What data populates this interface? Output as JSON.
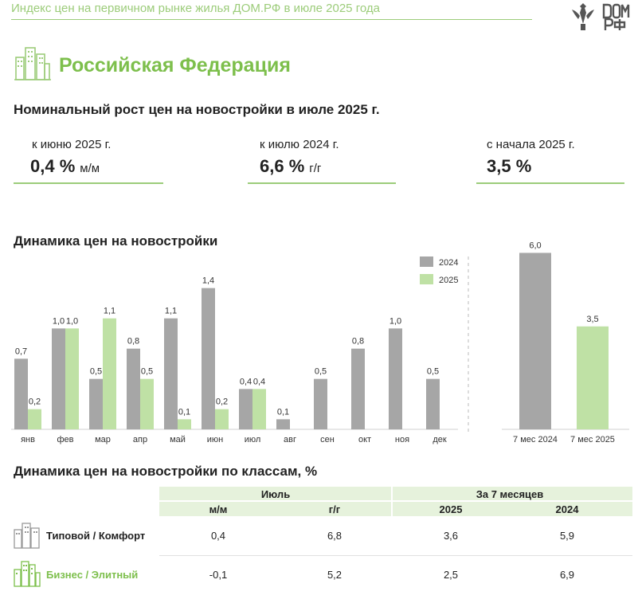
{
  "header": {
    "title": "Индекс цен на первичном рынке жилья ДОМ.РФ в июле 2025 года",
    "logo_text": "ДОМ РФ"
  },
  "region": {
    "title": "Российская Федерация"
  },
  "kpi_section": {
    "title": "Номинальный рост цен на новостройки в июле 2025 г.",
    "items": [
      {
        "label": "к июню 2025 г.",
        "value": "0,4 %",
        "unit": "м/м"
      },
      {
        "label": "к июлю 2024 г.",
        "value": "6,6 %",
        "unit": "г/г"
      },
      {
        "label": "с начала 2025 г.",
        "value": "3,5 %",
        "unit": ""
      }
    ]
  },
  "colors": {
    "accent": "#7dbf4c",
    "bar_2024": "#a6a6a6",
    "bar_2025": "#bfe1a5",
    "table_header": "#e6f2dc"
  },
  "chart_data": [
    {
      "type": "bar",
      "title": "Динамика цен на новостройки",
      "categories": [
        "янв",
        "фев",
        "мар",
        "апр",
        "май",
        "июн",
        "июл",
        "авг",
        "сен",
        "окт",
        "ноя",
        "дек"
      ],
      "series": [
        {
          "name": "2024",
          "values": [
            0.7,
            1.0,
            0.5,
            0.8,
            1.1,
            1.4,
            0.4,
            0.1,
            0.5,
            0.8,
            1.0,
            0.5
          ],
          "labels": [
            "0,7",
            "1,0",
            "0,5",
            "0,8",
            "1,1",
            "1,4",
            "0,4",
            "0,1",
            "0,5",
            "0,8",
            "1,0",
            "0,5"
          ]
        },
        {
          "name": "2025",
          "values": [
            0.2,
            1.0,
            1.1,
            0.5,
            0.1,
            0.2,
            0.4,
            null,
            null,
            null,
            null,
            null
          ],
          "labels": [
            "0,2",
            "1,0",
            "1,1",
            "0,5",
            "0,1",
            "0,2",
            "0,4",
            "",
            "",
            "",
            "",
            ""
          ]
        }
      ],
      "ylim": [
        0,
        1.5
      ],
      "legend": "top-right"
    },
    {
      "type": "bar",
      "title": "",
      "categories": [
        "7 мес 2024",
        "7 мес 2025"
      ],
      "values": [
        6.0,
        3.5
      ],
      "labels": [
        "6,0",
        "3,5"
      ],
      "ylim": [
        0,
        6.5
      ]
    }
  ],
  "table": {
    "title": "Динамика цен на новостройки по классам, %",
    "group_headers": [
      "Июль",
      "За 7 месяцев"
    ],
    "sub_headers": [
      "м/м",
      "г/г",
      "2025",
      "2024"
    ],
    "rows": [
      {
        "label": "Типовой / Комфорт",
        "values": [
          "0,4",
          "6,8",
          "3,6",
          "5,9"
        ]
      },
      {
        "label": "Бизнес / Элитный",
        "values": [
          "-0,1",
          "5,2",
          "2,5",
          "6,9"
        ]
      }
    ]
  }
}
